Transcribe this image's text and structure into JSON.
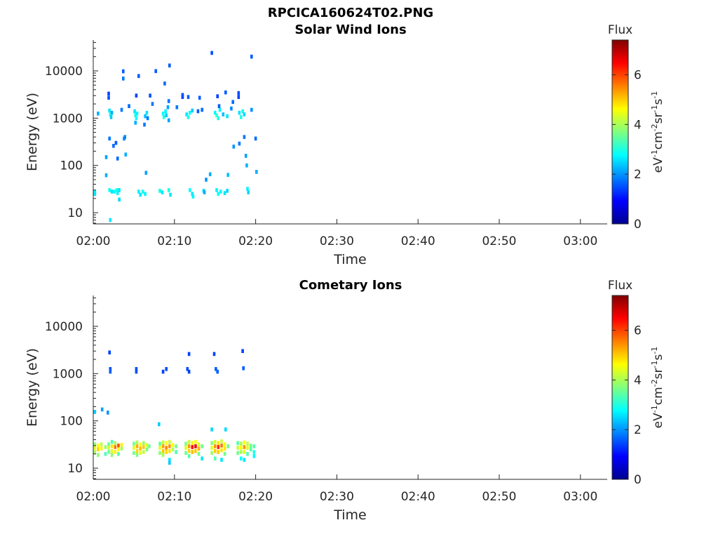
{
  "figure": {
    "title": "RPCICA160624T02.PNG"
  },
  "colorbar": {
    "label": "Flux",
    "units_main": [
      "eV",
      "cm",
      "sr",
      "s"
    ],
    "units_exp": [
      "-1",
      "-2",
      "-1",
      "-1"
    ],
    "ticks": [
      0,
      2,
      4,
      6
    ],
    "range": [
      0,
      7.4
    ]
  },
  "chart_data": [
    {
      "type": "heatmap",
      "title": "Solar Wind Ions",
      "xlabel": "Time",
      "ylabel": "Energy (eV)",
      "x_ticks": [
        "02:00",
        "02:10",
        "02:20",
        "02:30",
        "02:40",
        "02:50",
        "03:00"
      ],
      "x_range_min": [
        0,
        63.3
      ],
      "y_ticks": [
        10,
        100,
        1000,
        10000
      ],
      "y_tick_labels": [
        "10",
        "100",
        "1000",
        "10000"
      ],
      "y_range": [
        5.8,
        45000
      ],
      "y_scale": "log",
      "color_label": "Flux",
      "color_range": [
        0,
        7.4
      ],
      "points": [
        [
          0.2,
          28,
          2.8
        ],
        [
          0.2,
          25,
          2.6
        ],
        [
          0.6,
          1250,
          2.2
        ],
        [
          1.6,
          150,
          2.1
        ],
        [
          1.6,
          62,
          2.2
        ],
        [
          1.9,
          3300,
          1.4
        ],
        [
          1.9,
          2700,
          1.5
        ],
        [
          2.0,
          1450,
          2.6
        ],
        [
          2.1,
          1200,
          3.1
        ],
        [
          2.2,
          1050,
          2.4
        ],
        [
          2.3,
          1300,
          2.2
        ],
        [
          2.1,
          7,
          2.6
        ],
        [
          2.0,
          30,
          2.9
        ],
        [
          2.3,
          28,
          2.6
        ],
        [
          2.0,
          370,
          1.8
        ],
        [
          2.8,
          300,
          1.6
        ],
        [
          2.6,
          28,
          2.8
        ],
        [
          2.9,
          30,
          3.0
        ],
        [
          3.0,
          26,
          2.7
        ],
        [
          3.2,
          19,
          2.5
        ],
        [
          3.2,
          30,
          2.6
        ],
        [
          3.5,
          1500,
          1.8
        ],
        [
          3.7,
          9800,
          1.6
        ],
        [
          3.7,
          6900,
          1.8
        ],
        [
          3.8,
          370,
          1.9
        ],
        [
          3.9,
          400,
          1.9
        ],
        [
          4.0,
          170,
          2.2
        ],
        [
          4.4,
          1800,
          1.7
        ],
        [
          5.1,
          1400,
          2.6
        ],
        [
          5.2,
          1150,
          3.0
        ],
        [
          5.3,
          1000,
          2.8
        ],
        [
          5.4,
          1250,
          2.7
        ],
        [
          5.3,
          3000,
          1.4
        ],
        [
          5.2,
          800,
          2.2
        ],
        [
          5.6,
          7800,
          1.6
        ],
        [
          5.6,
          28,
          2.7
        ],
        [
          5.8,
          24,
          2.6
        ],
        [
          6.1,
          28,
          2.9
        ],
        [
          6.4,
          25,
          2.7
        ],
        [
          6.5,
          70,
          2.1
        ],
        [
          6.4,
          1100,
          2.3
        ],
        [
          6.6,
          1300,
          2.6
        ],
        [
          6.3,
          730,
          1.8
        ],
        [
          7.0,
          3000,
          1.5
        ],
        [
          7.3,
          2000,
          1.8
        ],
        [
          7.7,
          9900,
          1.6
        ],
        [
          8.2,
          29,
          2.9
        ],
        [
          8.5,
          27,
          2.6
        ],
        [
          8.6,
          1250,
          2.8
        ],
        [
          8.7,
          1050,
          3.0
        ],
        [
          8.9,
          1400,
          2.7
        ],
        [
          9.0,
          1150,
          2.4
        ],
        [
          8.8,
          5400,
          1.7
        ],
        [
          9.2,
          1700,
          2.1
        ],
        [
          9.3,
          2300,
          1.8
        ],
        [
          9.3,
          30,
          2.9
        ],
        [
          9.5,
          24,
          2.6
        ],
        [
          9.3,
          900,
          2.1
        ],
        [
          9.4,
          13000,
          1.6
        ],
        [
          10.3,
          1700,
          1.8
        ],
        [
          11.0,
          2800,
          1.4
        ],
        [
          11.0,
          3100,
          1.5
        ],
        [
          11.5,
          1200,
          2.6
        ],
        [
          11.7,
          1050,
          3.0
        ],
        [
          11.9,
          1300,
          2.8
        ],
        [
          12.2,
          1450,
          2.4
        ],
        [
          11.7,
          2800,
          1.6
        ],
        [
          11.9,
          30,
          2.8
        ],
        [
          12.2,
          25,
          2.6
        ],
        [
          12.3,
          22,
          2.7
        ],
        [
          12.9,
          1400,
          1.6
        ],
        [
          13.1,
          2700,
          1.6
        ],
        [
          13.4,
          1500,
          1.7
        ],
        [
          13.6,
          29,
          2.5
        ],
        [
          13.7,
          27,
          2.2
        ],
        [
          13.9,
          50,
          2.0
        ],
        [
          14.4,
          65,
          2.2
        ],
        [
          14.6,
          24000,
          1.5
        ],
        [
          15.0,
          1300,
          2.7
        ],
        [
          15.2,
          1150,
          3.1
        ],
        [
          15.4,
          1000,
          3.0
        ],
        [
          15.6,
          1500,
          2.7
        ],
        [
          15.3,
          2900,
          1.4
        ],
        [
          15.5,
          1800,
          1.6
        ],
        [
          15.2,
          30,
          2.7
        ],
        [
          15.4,
          25,
          2.9
        ],
        [
          15.7,
          28,
          2.8
        ],
        [
          16.0,
          1200,
          2.3
        ],
        [
          16.3,
          3500,
          1.6
        ],
        [
          16.2,
          26,
          2.6
        ],
        [
          16.5,
          29,
          2.5
        ],
        [
          16.5,
          1100,
          2.6
        ],
        [
          16.6,
          63,
          2.3
        ],
        [
          17.0,
          1600,
          1.9
        ],
        [
          17.2,
          2200,
          1.7
        ],
        [
          17.3,
          250,
          2.0
        ],
        [
          17.9,
          2800,
          1.4
        ],
        [
          17.9,
          3400,
          1.5
        ],
        [
          18.0,
          1300,
          2.6
        ],
        [
          18.2,
          1050,
          3.0
        ],
        [
          18.4,
          1400,
          2.9
        ],
        [
          18.6,
          1200,
          2.5
        ],
        [
          18.0,
          290,
          1.8
        ],
        [
          18.6,
          400,
          1.8
        ],
        [
          18.8,
          160,
          2.1
        ],
        [
          18.9,
          100,
          2.2
        ],
        [
          19.0,
          32,
          2.7
        ],
        [
          19.1,
          27,
          2.5
        ],
        [
          19.5,
          1500,
          2.0
        ],
        [
          19.5,
          20000,
          1.6
        ],
        [
          20.0,
          370,
          1.7
        ],
        [
          20.1,
          73,
          2.2
        ],
        [
          2.5,
          260,
          1.7
        ],
        [
          3.0,
          140,
          1.7
        ],
        [
          6.7,
          1000,
          1.8
        ]
      ]
    },
    {
      "type": "heatmap",
      "title": "Cometary Ions",
      "xlabel": "Time",
      "ylabel": "Energy (eV)",
      "x_ticks": [
        "02:00",
        "02:10",
        "02:20",
        "02:30",
        "02:40",
        "02:50",
        "03:00"
      ],
      "x_range_min": [
        0,
        63.3
      ],
      "y_ticks": [
        10,
        100,
        1000,
        10000
      ],
      "y_tick_labels": [
        "10",
        "100",
        "1000",
        "10000"
      ],
      "y_range": [
        5.8,
        45000
      ],
      "y_scale": "log",
      "color_label": "Flux",
      "color_range": [
        0,
        7.4
      ],
      "points": [
        [
          0.2,
          155,
          2.4
        ],
        [
          1.1,
          175,
          2.1
        ],
        [
          1.8,
          150,
          2.0
        ],
        [
          2.0,
          2800,
          1.4
        ],
        [
          2.1,
          1250,
          1.5
        ],
        [
          2.1,
          1100,
          1.6
        ],
        [
          5.3,
          1250,
          1.5
        ],
        [
          5.3,
          1100,
          1.5
        ],
        [
          8.6,
          1100,
          1.4
        ],
        [
          9.0,
          1250,
          1.5
        ],
        [
          11.6,
          1250,
          1.5
        ],
        [
          11.8,
          1100,
          1.4
        ],
        [
          11.8,
          2600,
          1.4
        ],
        [
          14.9,
          2600,
          1.4
        ],
        [
          15.1,
          1250,
          1.6
        ],
        [
          15.3,
          1100,
          1.6
        ],
        [
          18.4,
          3000,
          1.4
        ],
        [
          18.5,
          1300,
          1.6
        ],
        [
          8.1,
          85,
          2.4
        ],
        [
          14.6,
          66,
          2.5
        ],
        [
          16.3,
          66,
          2.5
        ],
        [
          0.2,
          32,
          3.8
        ],
        [
          0.2,
          27,
          4.4
        ],
        [
          0.2,
          22,
          4.0
        ],
        [
          0.6,
          30,
          4.6
        ],
        [
          0.6,
          25,
          4.9
        ],
        [
          0.6,
          19,
          3.8
        ],
        [
          1.0,
          32,
          4.2
        ],
        [
          1.0,
          26,
          4.7
        ],
        [
          1.5,
          28,
          3.9
        ],
        [
          1.5,
          20,
          3.3
        ],
        [
          1.9,
          32,
          3.5
        ],
        [
          1.9,
          27,
          4.2
        ],
        [
          1.9,
          22,
          3.6
        ],
        [
          2.3,
          36,
          3.3
        ],
        [
          2.3,
          29,
          4.8
        ],
        [
          2.3,
          23,
          4.4
        ],
        [
          2.3,
          19,
          3.8
        ],
        [
          2.7,
          34,
          4.0
        ],
        [
          2.7,
          28,
          5.6
        ],
        [
          2.7,
          22,
          4.7
        ],
        [
          3.1,
          30,
          5.9
        ],
        [
          3.1,
          25,
          4.6
        ],
        [
          3.1,
          20,
          3.4
        ],
        [
          3.5,
          31,
          4.7
        ],
        [
          3.5,
          26,
          4.0
        ],
        [
          5.0,
          33,
          3.6
        ],
        [
          5.0,
          27,
          4.4
        ],
        [
          5.0,
          21,
          3.6
        ],
        [
          5.4,
          35,
          4.0
        ],
        [
          5.4,
          29,
          5.2
        ],
        [
          5.4,
          23,
          4.9
        ],
        [
          5.4,
          19,
          3.7
        ],
        [
          5.8,
          32,
          4.6
        ],
        [
          5.8,
          26,
          5.1
        ],
        [
          5.8,
          21,
          4.4
        ],
        [
          6.2,
          34,
          3.9
        ],
        [
          6.2,
          28,
          5.0
        ],
        [
          6.2,
          22,
          4.2
        ],
        [
          6.6,
          31,
          4.4
        ],
        [
          6.6,
          25,
          3.7
        ],
        [
          6.9,
          29,
          3.6
        ],
        [
          8.2,
          33,
          3.5
        ],
        [
          8.2,
          27,
          4.4
        ],
        [
          8.2,
          21,
          3.8
        ],
        [
          8.6,
          35,
          4.2
        ],
        [
          8.6,
          29,
          5.3
        ],
        [
          8.6,
          23,
          5.0
        ],
        [
          8.6,
          19,
          4.0
        ],
        [
          9.0,
          34,
          4.6
        ],
        [
          9.0,
          27,
          5.5
        ],
        [
          9.0,
          22,
          4.9
        ],
        [
          9.4,
          36,
          4.2
        ],
        [
          9.4,
          29,
          5.4
        ],
        [
          9.4,
          23,
          4.8
        ],
        [
          9.4,
          15,
          2.6
        ],
        [
          9.4,
          13,
          2.4
        ],
        [
          9.8,
          31,
          4.6
        ],
        [
          9.8,
          25,
          4.0
        ],
        [
          10.2,
          29,
          3.6
        ],
        [
          10.2,
          22,
          3.3
        ],
        [
          11.4,
          33,
          3.7
        ],
        [
          11.4,
          27,
          4.4
        ],
        [
          11.4,
          21,
          3.6
        ],
        [
          11.8,
          36,
          4.2
        ],
        [
          11.8,
          29,
          5.4
        ],
        [
          11.8,
          23,
          4.9
        ],
        [
          11.8,
          18,
          3.4
        ],
        [
          12.2,
          34,
          4.7
        ],
        [
          12.2,
          28,
          6.4
        ],
        [
          12.2,
          22,
          5.1
        ],
        [
          12.6,
          36,
          4.6
        ],
        [
          12.6,
          29,
          6.6
        ],
        [
          12.6,
          23,
          5.0
        ],
        [
          13.0,
          32,
          4.4
        ],
        [
          13.0,
          26,
          5.2
        ],
        [
          13.0,
          20,
          3.6
        ],
        [
          13.4,
          29,
          3.6
        ],
        [
          13.4,
          16,
          2.6
        ],
        [
          14.6,
          34,
          3.8
        ],
        [
          14.6,
          27,
          4.4
        ],
        [
          14.6,
          21,
          3.9
        ],
        [
          15.0,
          36,
          4.3
        ],
        [
          15.0,
          29,
          5.4
        ],
        [
          15.0,
          23,
          5.0
        ],
        [
          15.0,
          16,
          3.4
        ],
        [
          15.4,
          34,
          4.8
        ],
        [
          15.4,
          28,
          6.2
        ],
        [
          15.4,
          22,
          5.0
        ],
        [
          15.8,
          37,
          4.3
        ],
        [
          15.8,
          30,
          5.6
        ],
        [
          15.8,
          24,
          4.8
        ],
        [
          15.8,
          15,
          2.6
        ],
        [
          16.2,
          32,
          4.5
        ],
        [
          16.2,
          26,
          4.8
        ],
        [
          16.2,
          20,
          3.6
        ],
        [
          16.6,
          29,
          3.6
        ],
        [
          17.8,
          34,
          3.4
        ],
        [
          17.8,
          27,
          4.2
        ],
        [
          17.8,
          21,
          3.6
        ],
        [
          18.2,
          33,
          4.0
        ],
        [
          18.2,
          27,
          4.6
        ],
        [
          18.2,
          22,
          4.0
        ],
        [
          18.2,
          16,
          2.8
        ],
        [
          18.6,
          35,
          4.6
        ],
        [
          18.6,
          28,
          5.4
        ],
        [
          18.6,
          22,
          4.4
        ],
        [
          18.6,
          15,
          2.6
        ],
        [
          19.0,
          33,
          4.2
        ],
        [
          19.0,
          27,
          4.4
        ],
        [
          19.0,
          20,
          3.3
        ],
        [
          19.4,
          30,
          3.6
        ],
        [
          19.4,
          25,
          3.4
        ],
        [
          19.8,
          29,
          3.4
        ],
        [
          19.8,
          22,
          3.0
        ],
        [
          19.8,
          18,
          2.8
        ]
      ]
    }
  ]
}
